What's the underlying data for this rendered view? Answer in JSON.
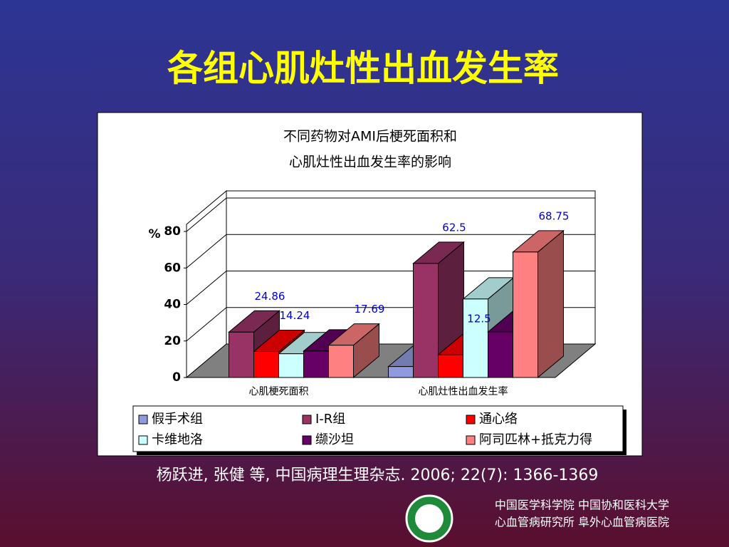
{
  "header": {
    "title": "各组心肌灶性出血发生率"
  },
  "chart_data": {
    "type": "bar3d",
    "title": [
      "不同药物对AMI后梗死面积和",
      "心肌灶性出血发生率的影响"
    ],
    "ylabel": "%",
    "categories": [
      "心肌梗死面积",
      "心肌灶性出血发生率"
    ],
    "ylim": [
      0,
      80
    ],
    "yticks": [
      0,
      20,
      40,
      60,
      80
    ],
    "grid": true,
    "series": [
      {
        "name": "假手术组",
        "color": "#8f9bdc",
        "values": [
          null,
          6
        ],
        "value_labels": [
          null,
          null
        ]
      },
      {
        "name": "I-R组",
        "color": "#993366",
        "values": [
          24.86,
          62.5
        ],
        "value_labels": [
          "24.86",
          "62.5"
        ]
      },
      {
        "name": "通心络",
        "color": "#ff0000",
        "values": [
          14.24,
          12.5
        ],
        "value_labels": [
          "14.24",
          "12.5"
        ]
      },
      {
        "name": "卡维地洛",
        "color": "#ccffff",
        "values": [
          13,
          43
        ],
        "value_labels": [
          null,
          null
        ]
      },
      {
        "name": "缬沙坦",
        "color": "#660066",
        "values": [
          14.5,
          25
        ],
        "value_labels": [
          null,
          null
        ]
      },
      {
        "name": "阿司匹林+抵克力得",
        "color": "#ff8080",
        "values": [
          17.69,
          68.75
        ],
        "value_labels": [
          "17.69",
          "68.75"
        ]
      }
    ]
  },
  "footer": {
    "citation": "杨跃进, 张健 等, 中国病理生理杂志. 2006; 22(7): 1366-1369",
    "institutions": [
      "中国医学科学院  中国协和医科大学",
      "心血管病研究所  阜外心血管病医院"
    ]
  }
}
